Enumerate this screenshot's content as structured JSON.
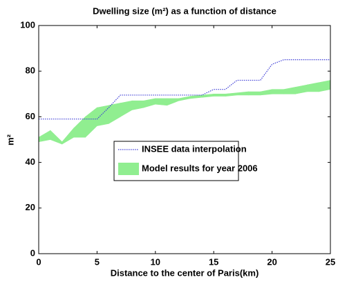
{
  "chart_data": {
    "type": "line-band",
    "title": "Dwelling size (m²) as a function of distance",
    "xlabel": "Distance to the center of Paris(km)",
    "ylabel": "m²",
    "x": [
      0,
      1,
      2,
      3,
      4,
      5,
      6,
      7,
      8,
      9,
      10,
      11,
      12,
      13,
      14,
      15,
      16,
      17,
      18,
      19,
      20,
      21,
      22,
      23,
      24,
      25
    ],
    "series": [
      {
        "name": "INSEE data interpolation",
        "color": "#3a3ad6",
        "style": "dotted",
        "values": [
          59,
          59,
          59,
          59,
          59,
          59,
          64,
          69.5,
          69.5,
          69.5,
          69.5,
          69.5,
          69.5,
          69.5,
          69.5,
          72,
          72,
          76,
          76,
          76,
          83,
          85,
          85,
          85,
          85,
          85
        ]
      },
      {
        "name": "Model results for year 2006",
        "color": "#90ee90",
        "lower": [
          49,
          50,
          48,
          51,
          51,
          56,
          57,
          60,
          63,
          64,
          65.5,
          65,
          67,
          68,
          68.5,
          69,
          69,
          69.5,
          69.5,
          69.5,
          70,
          70,
          70,
          71,
          71,
          72
        ],
        "upper": [
          51,
          54,
          49,
          55,
          60,
          64,
          65,
          66,
          67,
          67,
          68,
          68,
          68,
          69,
          69.5,
          70,
          70,
          70.5,
          71,
          71,
          72,
          72,
          73,
          74,
          75,
          76
        ]
      }
    ],
    "xlim": [
      0,
      25
    ],
    "xticks": [
      0,
      5,
      10,
      15,
      20,
      25
    ],
    "ylim": [
      0,
      100
    ],
    "yticks": [
      0,
      20,
      40,
      60,
      80,
      100
    ]
  }
}
